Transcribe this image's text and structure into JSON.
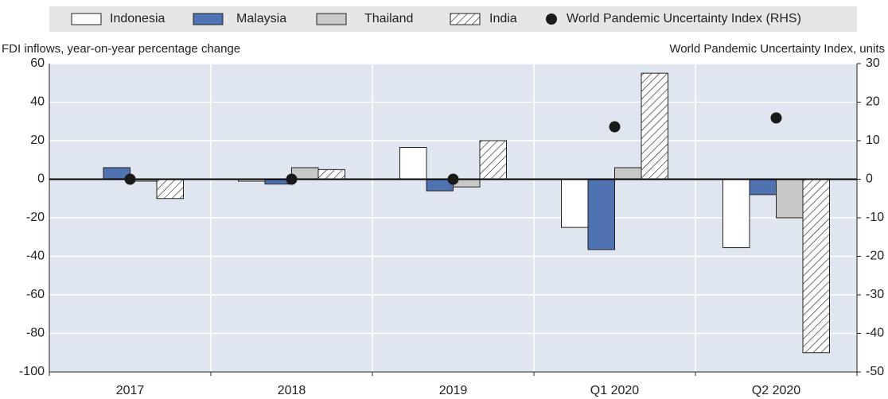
{
  "chart_data": {
    "type": "bar",
    "ylabel": "FDI inflows, year-on-year percentage change",
    "y2label": "World Pandemic Uncertainty Index, units",
    "categories": [
      "2017",
      "2018",
      "2019",
      "Q1 2020",
      "Q2 2020"
    ],
    "series": [
      {
        "name": "Indonesia",
        "color": "#ffffff",
        "values": [
          0,
          -1,
          16.5,
          -25,
          -35.5
        ]
      },
      {
        "name": "Malaysia",
        "color": "#4f72b0",
        "values": [
          6,
          -2.5,
          -6,
          -36.5,
          -8
        ]
      },
      {
        "name": "Thailand",
        "color": "#c8c8c8",
        "values": [
          -1,
          6,
          -4,
          6,
          -20
        ]
      },
      {
        "name": "India",
        "color": "#ffffff",
        "pattern": "hatch",
        "values": [
          -10,
          5,
          20,
          55,
          -90
        ]
      },
      {
        "name": "World Pandemic Uncertainty Index (RHS)",
        "color": "#1a1a1a",
        "marker": "dot",
        "axis": "y2",
        "values": [
          0,
          0,
          0,
          13.6,
          15.9
        ]
      }
    ],
    "ylim": [
      -100,
      60
    ],
    "yticks": [
      -100,
      -80,
      -60,
      -40,
      -20,
      0,
      20,
      40,
      60
    ],
    "y2lim": [
      -50,
      30
    ],
    "y2ticks": [
      -50,
      -40,
      -30,
      -20,
      -10,
      0,
      10,
      20,
      30
    ],
    "grid": true
  }
}
